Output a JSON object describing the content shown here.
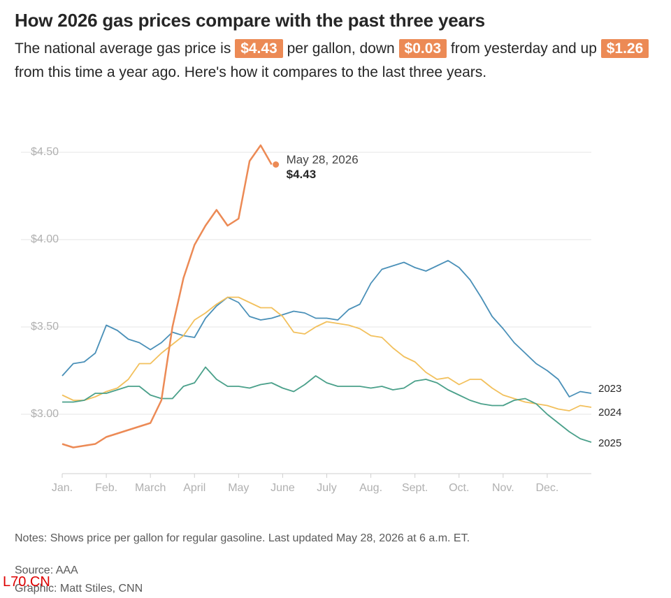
{
  "header": {
    "title": "How 2026 gas prices compare with the past three years",
    "subtitle": [
      {
        "text": "The national average gas price is ",
        "highlight": false
      },
      {
        "text": "$4.43",
        "highlight": true
      },
      {
        "text": " per gallon, down ",
        "highlight": false
      },
      {
        "text": "$0.03",
        "highlight": true
      },
      {
        "text": " from yesterday and up ",
        "highlight": false
      },
      {
        "text": "$1.26",
        "highlight": true
      },
      {
        "text": " from this time a year ago. Here's how it compares to the last three years.",
        "highlight": false
      }
    ]
  },
  "chart_data": {
    "type": "line",
    "x": [
      0,
      0.25,
      0.5,
      0.75,
      1,
      1.25,
      1.5,
      1.75,
      2,
      2.25,
      2.5,
      2.75,
      3,
      3.25,
      3.5,
      3.75,
      4,
      4.25,
      4.5,
      4.75,
      5,
      5.25,
      5.5,
      5.75,
      6,
      6.25,
      6.5,
      6.75,
      7,
      7.25,
      7.5,
      7.75,
      8,
      8.25,
      8.5,
      8.75,
      9,
      9.25,
      9.5,
      9.75,
      10,
      10.25,
      10.5,
      10.75,
      11,
      11.25,
      11.5,
      11.75,
      12
    ],
    "xlim": [
      0,
      12
    ],
    "xticks": [
      {
        "value": 0,
        "label": "Jan."
      },
      {
        "value": 1,
        "label": "Feb."
      },
      {
        "value": 2,
        "label": "March"
      },
      {
        "value": 3,
        "label": "April"
      },
      {
        "value": 4,
        "label": "May"
      },
      {
        "value": 5,
        "label": "June"
      },
      {
        "value": 6,
        "label": "July"
      },
      {
        "value": 7,
        "label": "Aug."
      },
      {
        "value": 8,
        "label": "Sept."
      },
      {
        "value": 9,
        "label": "Oct."
      },
      {
        "value": 10,
        "label": "Nov."
      },
      {
        "value": 11,
        "label": "Dec."
      }
    ],
    "ylim": [
      2.66,
      4.62
    ],
    "yticks": [
      {
        "value": 3,
        "label": "$3.00"
      },
      {
        "value": 3.5,
        "label": "$3.50"
      },
      {
        "value": 4,
        "label": "$4.00"
      },
      {
        "value": 4.5,
        "label": "$4.50"
      }
    ],
    "grid": true,
    "series": [
      {
        "name": "2023",
        "color": "#4a90b8",
        "values": [
          3.22,
          3.29,
          3.3,
          3.35,
          3.51,
          3.48,
          3.43,
          3.41,
          3.37,
          3.41,
          3.47,
          3.45,
          3.44,
          3.55,
          3.62,
          3.67,
          3.64,
          3.56,
          3.54,
          3.55,
          3.57,
          3.59,
          3.58,
          3.55,
          3.55,
          3.54,
          3.6,
          3.63,
          3.75,
          3.83,
          3.85,
          3.87,
          3.84,
          3.82,
          3.85,
          3.88,
          3.84,
          3.77,
          3.67,
          3.56,
          3.49,
          3.41,
          3.35,
          3.29,
          3.25,
          3.2,
          3.1,
          3.13,
          3.12
        ]
      },
      {
        "name": "2024",
        "color": "#f2c05c",
        "values": [
          3.11,
          3.08,
          3.08,
          3.1,
          3.13,
          3.15,
          3.2,
          3.29,
          3.29,
          3.35,
          3.4,
          3.45,
          3.54,
          3.58,
          3.63,
          3.67,
          3.67,
          3.64,
          3.61,
          3.61,
          3.56,
          3.47,
          3.46,
          3.5,
          3.53,
          3.52,
          3.51,
          3.49,
          3.45,
          3.44,
          3.38,
          3.33,
          3.3,
          3.24,
          3.2,
          3.21,
          3.17,
          3.2,
          3.2,
          3.15,
          3.11,
          3.09,
          3.07,
          3.06,
          3.05,
          3.03,
          3.02,
          3.05,
          3.04
        ]
      },
      {
        "name": "2025",
        "color": "#4aa08a",
        "values": [
          3.07,
          3.07,
          3.08,
          3.12,
          3.12,
          3.14,
          3.16,
          3.16,
          3.11,
          3.09,
          3.09,
          3.16,
          3.18,
          3.27,
          3.2,
          3.16,
          3.16,
          3.15,
          3.17,
          3.18,
          3.15,
          3.13,
          3.17,
          3.22,
          3.18,
          3.16,
          3.16,
          3.16,
          3.15,
          3.16,
          3.14,
          3.15,
          3.19,
          3.2,
          3.18,
          3.14,
          3.11,
          3.08,
          3.06,
          3.05,
          3.05,
          3.08,
          3.09,
          3.06,
          3.0,
          2.95,
          2.9,
          2.86,
          2.84
        ]
      },
      {
        "color": "#ec8a55",
        "values": [
          2.83,
          2.81,
          2.82,
          2.83,
          2.87,
          2.89,
          2.91,
          2.93,
          2.95,
          3.08,
          3.5,
          3.78,
          3.97,
          4.08,
          4.17,
          4.08,
          4.12,
          4.45,
          4.54,
          4.43,
          null,
          null,
          null,
          null,
          null,
          null,
          null,
          null,
          null,
          null,
          null,
          null,
          null,
          null,
          null,
          null,
          null,
          null,
          null,
          null,
          null,
          null,
          null,
          null,
          null,
          null,
          null,
          null,
          null
        ],
        "annotation": {
          "text": "May 28, 2026",
          "value_label": "$4.43"
        }
      }
    ]
  },
  "notes": "Notes: Shows price per gallon for regular gasoline. Last updated May 28, 2026 at 6 a.m. ET.",
  "source": "Source: AAA",
  "credit": "Graphic: Matt Stiles, CNN",
  "watermark": "L70.CN"
}
